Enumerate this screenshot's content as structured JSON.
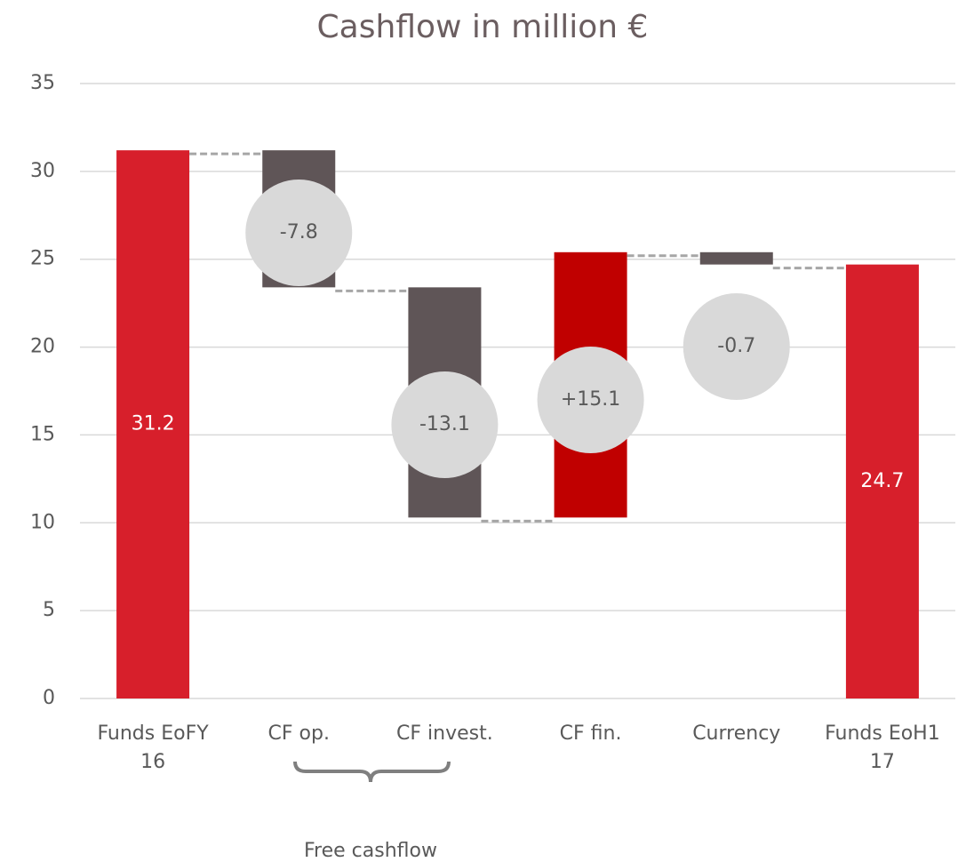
{
  "chart_data": {
    "type": "waterfall",
    "title": "Cashflow in million €",
    "categories": [
      "Funds EoFY 16",
      "CF op.",
      "CF invest.",
      "CF fin.",
      "Currency",
      "Funds EoH1 17"
    ],
    "values": [
      31.2,
      -7.8,
      -13.1,
      15.1,
      -0.7,
      24.7
    ],
    "value_labels": [
      "31.2",
      "-7.8",
      "-13.1",
      "+15.1",
      "-0.7",
      "24.7"
    ],
    "is_total": [
      true,
      false,
      false,
      false,
      false,
      true
    ],
    "colors": [
      "#d71f2b",
      "#5f5557",
      "#5f5557",
      "#c00000",
      "#5f5557",
      "#d71f2b"
    ],
    "ylim": [
      0,
      35
    ],
    "yticks": [
      0,
      5,
      10,
      15,
      20,
      25,
      30,
      35
    ],
    "grid": true,
    "annotation": "Free cashflow"
  }
}
